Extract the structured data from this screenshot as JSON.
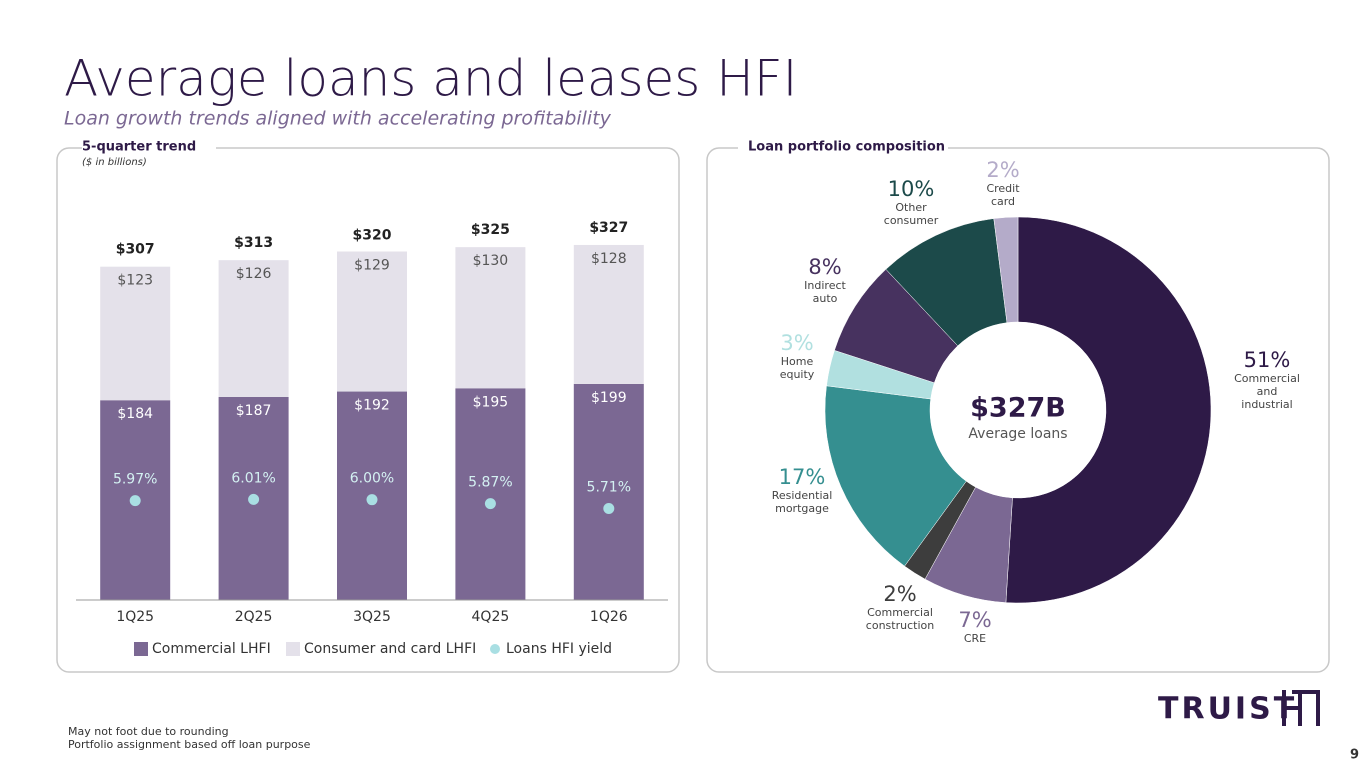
{
  "title": "Average loans and leases HFI",
  "subtitle": "Loan growth trends aligned with accelerating profitability",
  "chart_data": [
    {
      "type": "bar",
      "stacked": true,
      "title": "5-quarter trend",
      "subtitle": "($ in billions)",
      "categories": [
        "1Q25",
        "2Q25",
        "3Q25",
        "4Q25",
        "1Q26"
      ],
      "series": [
        {
          "name": "Commercial LHFI",
          "color": "#7b6893",
          "values": [
            184,
            187,
            192,
            195,
            199
          ],
          "value_labels": [
            "$184",
            "$187",
            "$192",
            "$195",
            "$199"
          ]
        },
        {
          "name": "Consumer and card LHFI",
          "color": "#e4e1ea",
          "values": [
            123,
            126,
            129,
            130,
            128
          ],
          "value_labels": [
            "$123",
            "$126",
            "$129",
            "$130",
            "$128"
          ]
        },
        {
          "name": "Loans HFI yield",
          "type": "scatter",
          "axis": "y2",
          "color": "#a9dfe3",
          "values": [
            5.97,
            6.01,
            6.0,
            5.87,
            5.71
          ],
          "value_labels": [
            "5.97%",
            "6.01%",
            "6.00%",
            "5.87%",
            "5.71%"
          ]
        }
      ],
      "totals": {
        "values": [
          307,
          313,
          320,
          325,
          327
        ],
        "value_labels": [
          "$307",
          "$313",
          "$320",
          "$325",
          "$327"
        ]
      },
      "ylim": [
        0,
        350
      ],
      "y2lim": [
        2.7,
        15.2
      ],
      "legend": "bottom"
    },
    {
      "type": "pie",
      "donut": true,
      "title": "Loan portfolio composition",
      "categories": [
        "Commercial and industrial",
        "CRE",
        "Commercial construction",
        "Residential mortgage",
        "Home equity",
        "Indirect auto",
        "Other consumer",
        "Credit card"
      ],
      "values": [
        51,
        7,
        2,
        17,
        3,
        8,
        10,
        2
      ],
      "value_labels": [
        "51%",
        "7%",
        "2%",
        "17%",
        "3%",
        "8%",
        "10%",
        "2%"
      ],
      "colors": [
        "#2e1a47",
        "#7b6893",
        "#3d3d3d",
        "#358f90",
        "#b1e0e0",
        "#47325f",
        "#1c4a4a",
        "#b4abc9"
      ],
      "center_label": "$327B",
      "center_caption": "Average loans"
    }
  ],
  "footnotes": [
    "May not foot due to rounding",
    "Portfolio assignment based off loan purpose"
  ],
  "logo": "TRUIST",
  "page_number": "9"
}
